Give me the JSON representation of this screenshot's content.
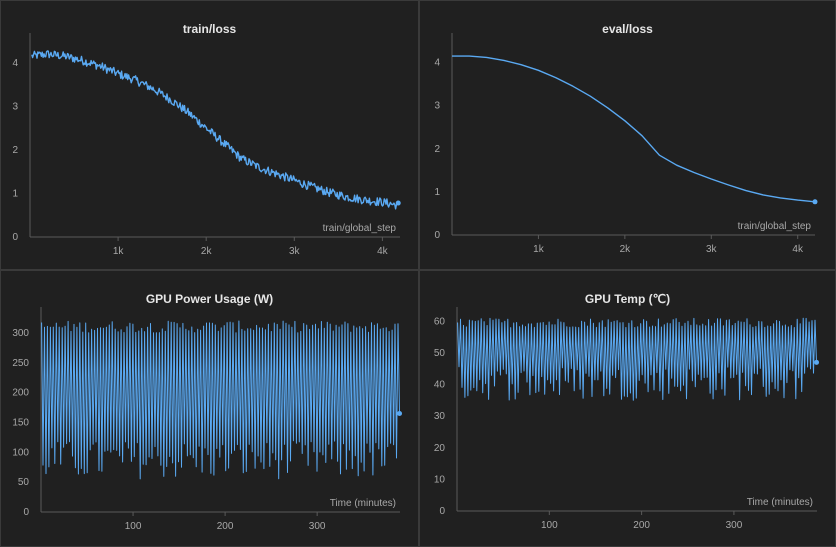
{
  "chart_data": [
    {
      "type": "line",
      "title": "train/loss",
      "xlabel": "train/global_step",
      "ylabel": "",
      "xlim": [
        0,
        4200
      ],
      "ylim": [
        0,
        4.5
      ],
      "yticks": [
        0,
        1,
        2,
        3,
        4
      ],
      "xticks": [
        1000,
        2000,
        3000,
        4000
      ],
      "xtick_labels": [
        "1k",
        "2k",
        "3k",
        "4k"
      ],
      "color": "#5aa9f2",
      "noisy": true,
      "noise_amplitude": 0.1,
      "x": [
        0,
        200,
        400,
        600,
        800,
        1000,
        1200,
        1400,
        1600,
        1800,
        2000,
        2200,
        2400,
        2600,
        2800,
        3000,
        3200,
        3400,
        3600,
        3800,
        4000,
        4200
      ],
      "y": [
        4.15,
        4.2,
        4.15,
        4.05,
        3.92,
        3.75,
        3.6,
        3.4,
        3.15,
        2.85,
        2.5,
        2.15,
        1.8,
        1.6,
        1.45,
        1.3,
        1.15,
        1.02,
        0.92,
        0.85,
        0.8,
        0.72
      ],
      "end_marker": true
    },
    {
      "type": "line",
      "title": "eval/loss",
      "xlabel": "train/global_step",
      "ylabel": "",
      "xlim": [
        0,
        4200
      ],
      "ylim": [
        0,
        4.5
      ],
      "yticks": [
        0,
        1,
        2,
        3,
        4
      ],
      "xticks": [
        1000,
        2000,
        3000,
        4000
      ],
      "xtick_labels": [
        "1k",
        "2k",
        "3k",
        "4k"
      ],
      "color": "#5aa9f2",
      "noisy": false,
      "x": [
        0,
        200,
        400,
        600,
        800,
        1000,
        1200,
        1400,
        1600,
        1800,
        2000,
        2200,
        2400,
        2600,
        2800,
        3000,
        3200,
        3400,
        3600,
        3800,
        4000,
        4200
      ],
      "y": [
        4.15,
        4.15,
        4.12,
        4.05,
        3.95,
        3.82,
        3.65,
        3.45,
        3.22,
        2.95,
        2.65,
        2.3,
        1.85,
        1.62,
        1.45,
        1.3,
        1.16,
        1.03,
        0.93,
        0.86,
        0.81,
        0.77
      ],
      "end_marker": true
    },
    {
      "type": "line",
      "title": "GPU Power Usage (W)",
      "xlabel": "Time (minutes)",
      "ylabel": "",
      "xlim": [
        0,
        390
      ],
      "ylim": [
        0,
        330
      ],
      "yticks": [
        0,
        50,
        100,
        150,
        200,
        250,
        300
      ],
      "xticks": [
        100,
        200,
        300
      ],
      "xtick_labels": [
        "100",
        "200",
        "300"
      ],
      "color": "#5aa9f2",
      "oscillating": true,
      "period_minutes": 3.2,
      "high_range": [
        300,
        320
      ],
      "low_range": [
        55,
        120
      ],
      "end_value": 165,
      "end_marker": true
    },
    {
      "type": "line",
      "title": "GPU Temp (℃)",
      "xlabel": "Time (minutes)",
      "ylabel": "",
      "xlim": [
        0,
        390
      ],
      "ylim": [
        0,
        62
      ],
      "yticks": [
        0,
        10,
        20,
        30,
        40,
        50,
        60
      ],
      "xticks": [
        100,
        200,
        300
      ],
      "xtick_labels": [
        "100",
        "200",
        "300"
      ],
      "color": "#5aa9f2",
      "oscillating": true,
      "period_minutes": 3.2,
      "high_range": [
        58,
        61
      ],
      "low_range": [
        35,
        46
      ],
      "end_value": 47,
      "end_marker": true
    }
  ]
}
